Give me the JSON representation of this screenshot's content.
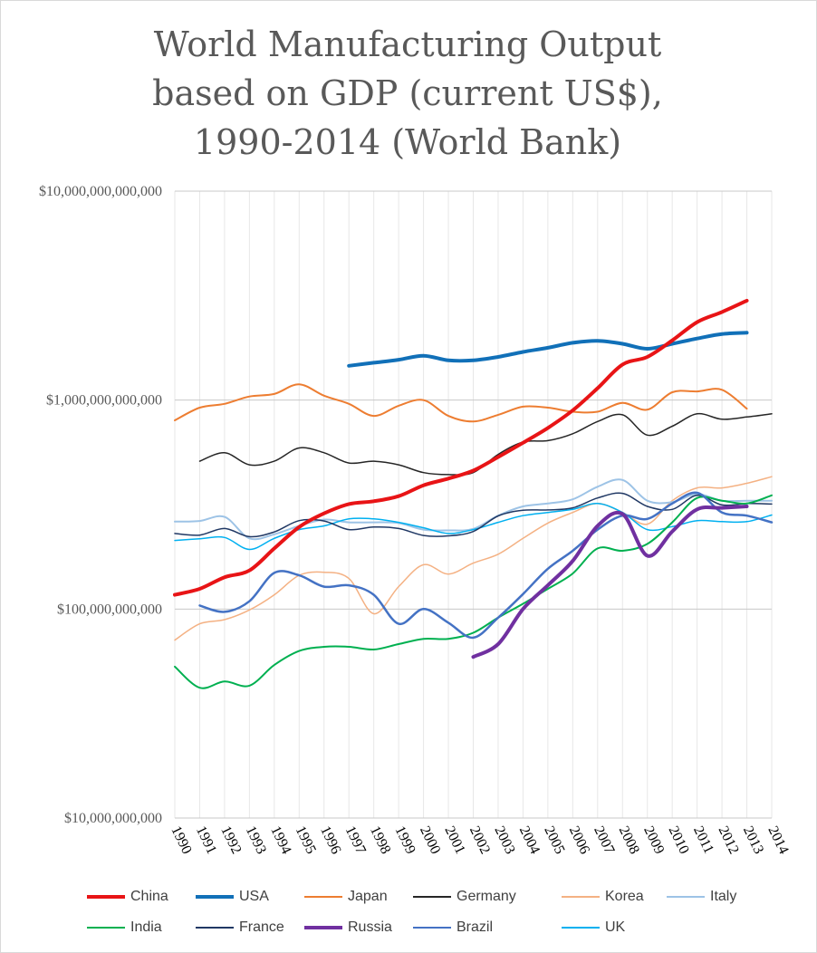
{
  "chart_data": {
    "type": "line",
    "title_lines": [
      "World Manufacturing Output",
      "based on GDP (current US$),",
      "1990-2014 (World Bank)"
    ],
    "yscale": "log",
    "ylim": [
      10000000000,
      10000000000000
    ],
    "yticks": [
      {
        "value": 10000000000,
        "label": "$10,000,000,000"
      },
      {
        "value": 100000000000,
        "label": "$100,000,000,000"
      },
      {
        "value": 1000000000000,
        "label": "$1,000,000,000,000"
      },
      {
        "value": 10000000000000,
        "label": "$10,000,000,000,000"
      }
    ],
    "x": [
      1990,
      1991,
      1992,
      1993,
      1994,
      1995,
      1996,
      1997,
      1998,
      1999,
      2000,
      2001,
      2002,
      2003,
      2004,
      2005,
      2006,
      2007,
      2008,
      2009,
      2010,
      2011,
      2012,
      2013,
      2014
    ],
    "xtick_labels": [
      "1990",
      "1991",
      "1992",
      "1993",
      "1994",
      "1995",
      "1996",
      "1997",
      "1998",
      "1999",
      "2000",
      "2001",
      "2002",
      "2003",
      "2004",
      "2005",
      "2006",
      "2007",
      "2008",
      "2009",
      "2010",
      "2011",
      "2012",
      "2013",
      "2014"
    ],
    "grid": "horizontal major and vertical",
    "legend_position": "bottom",
    "values_unit": "billions of current US$",
    "series": [
      {
        "name": "China",
        "color": "#e81416",
        "width": 4,
        "values": [
          117,
          125,
          142,
          153,
          195,
          247,
          287,
          318,
          328,
          347,
          391,
          421,
          460,
          534,
          625,
          736,
          893,
          1140,
          1480,
          1610,
          1930,
          2360,
          2640,
          2990,
          null
        ]
      },
      {
        "name": "USA",
        "color": "#1170b8",
        "width": 4,
        "values": [
          null,
          null,
          null,
          null,
          null,
          null,
          null,
          1460,
          1510,
          1560,
          1630,
          1550,
          1550,
          1610,
          1700,
          1780,
          1880,
          1920,
          1860,
          1760,
          1860,
          1970,
          2070,
          2100,
          null
        ]
      },
      {
        "name": "Japan",
        "color": "#ed7d31",
        "width": 2,
        "values": [
          800,
          920,
          960,
          1040,
          1070,
          1190,
          1050,
          960,
          840,
          940,
          1000,
          840,
          790,
          850,
          930,
          920,
          880,
          880,
          970,
          900,
          1090,
          1100,
          1120,
          910,
          null
        ]
      },
      {
        "name": "Germany",
        "color": "#262626",
        "width": 1.5,
        "values": [
          null,
          510,
          560,
          490,
          510,
          590,
          560,
          500,
          510,
          490,
          450,
          440,
          450,
          550,
          630,
          640,
          690,
          790,
          850,
          680,
          750,
          860,
          810,
          830,
          860
        ]
      },
      {
        "name": "Korea",
        "color": "#f4b183",
        "width": 1.5,
        "values": [
          71,
          85,
          89,
          99,
          117,
          145,
          150,
          140,
          95,
          128,
          163,
          147,
          166,
          183,
          218,
          258,
          290,
          320,
          290,
          255,
          330,
          380,
          380,
          400,
          430
        ]
      },
      {
        "name": "Italy",
        "color": "#9dc3e6",
        "width": 2,
        "values": [
          262,
          264,
          276,
          218,
          228,
          250,
          268,
          260,
          260,
          258,
          240,
          238,
          242,
          280,
          310,
          320,
          335,
          385,
          415,
          330,
          325,
          355,
          330,
          330,
          330
        ]
      },
      {
        "name": "India",
        "color": "#00b050",
        "width": 2,
        "values": [
          53,
          42,
          45,
          43,
          54,
          63,
          66,
          66,
          64,
          68,
          72,
          72,
          77,
          91,
          106,
          125,
          148,
          195,
          190,
          205,
          260,
          340,
          330,
          320,
          350
        ]
      },
      {
        "name": "France",
        "color": "#203864",
        "width": 1.5,
        "values": [
          230,
          226,
          243,
          222,
          234,
          265,
          264,
          240,
          247,
          243,
          225,
          224,
          235,
          279,
          297,
          298,
          305,
          340,
          358,
          310,
          300,
          350,
          315,
          320,
          318
        ]
      },
      {
        "name": "Russia",
        "color": "#7030a0",
        "width": 4,
        "values": [
          null,
          null,
          null,
          null,
          null,
          null,
          null,
          null,
          null,
          null,
          null,
          null,
          59,
          68,
          100,
          130,
          170,
          250,
          285,
          180,
          235,
          300,
          305,
          310,
          null
        ]
      },
      {
        "name": "Brazil",
        "color": "#4472c4",
        "width": 2.5,
        "values": [
          null,
          104,
          97,
          109,
          149,
          145,
          128,
          130,
          117,
          85,
          100,
          86,
          73,
          91,
          118,
          156,
          190,
          240,
          280,
          270,
          320,
          360,
          290,
          280,
          260
        ]
      },
      {
        "name": "UK",
        "color": "#00b0f0",
        "width": 1.5,
        "values": [
          213,
          217,
          220,
          193,
          218,
          240,
          250,
          270,
          270,
          260,
          245,
          230,
          240,
          260,
          280,
          290,
          300,
          320,
          290,
          240,
          248,
          265,
          262,
          262,
          282
        ]
      }
    ]
  }
}
